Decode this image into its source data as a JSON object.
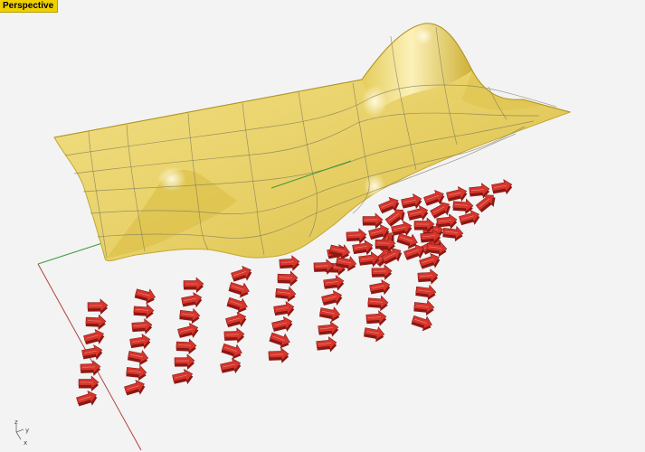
{
  "viewport": {
    "label": "Perspective"
  },
  "axes": {
    "x": "x",
    "y": "y",
    "z": "z"
  },
  "colors": {
    "background": "#f3f3f3",
    "viewport_label_bg": "#f0d000",
    "surface_fill": "#ecd770",
    "surface_edge": "#c2a630",
    "iso_curve": "#7c7a5e",
    "arrow_body": "#d7352c",
    "arrow_dark": "#8e1814",
    "grid_x_axis": "#b04040",
    "grid_y_axis": "#3d9a3d"
  },
  "icons": {
    "axis_widget": "world-axes-icon",
    "arrow_object": "arrow-glyph-icon"
  }
}
